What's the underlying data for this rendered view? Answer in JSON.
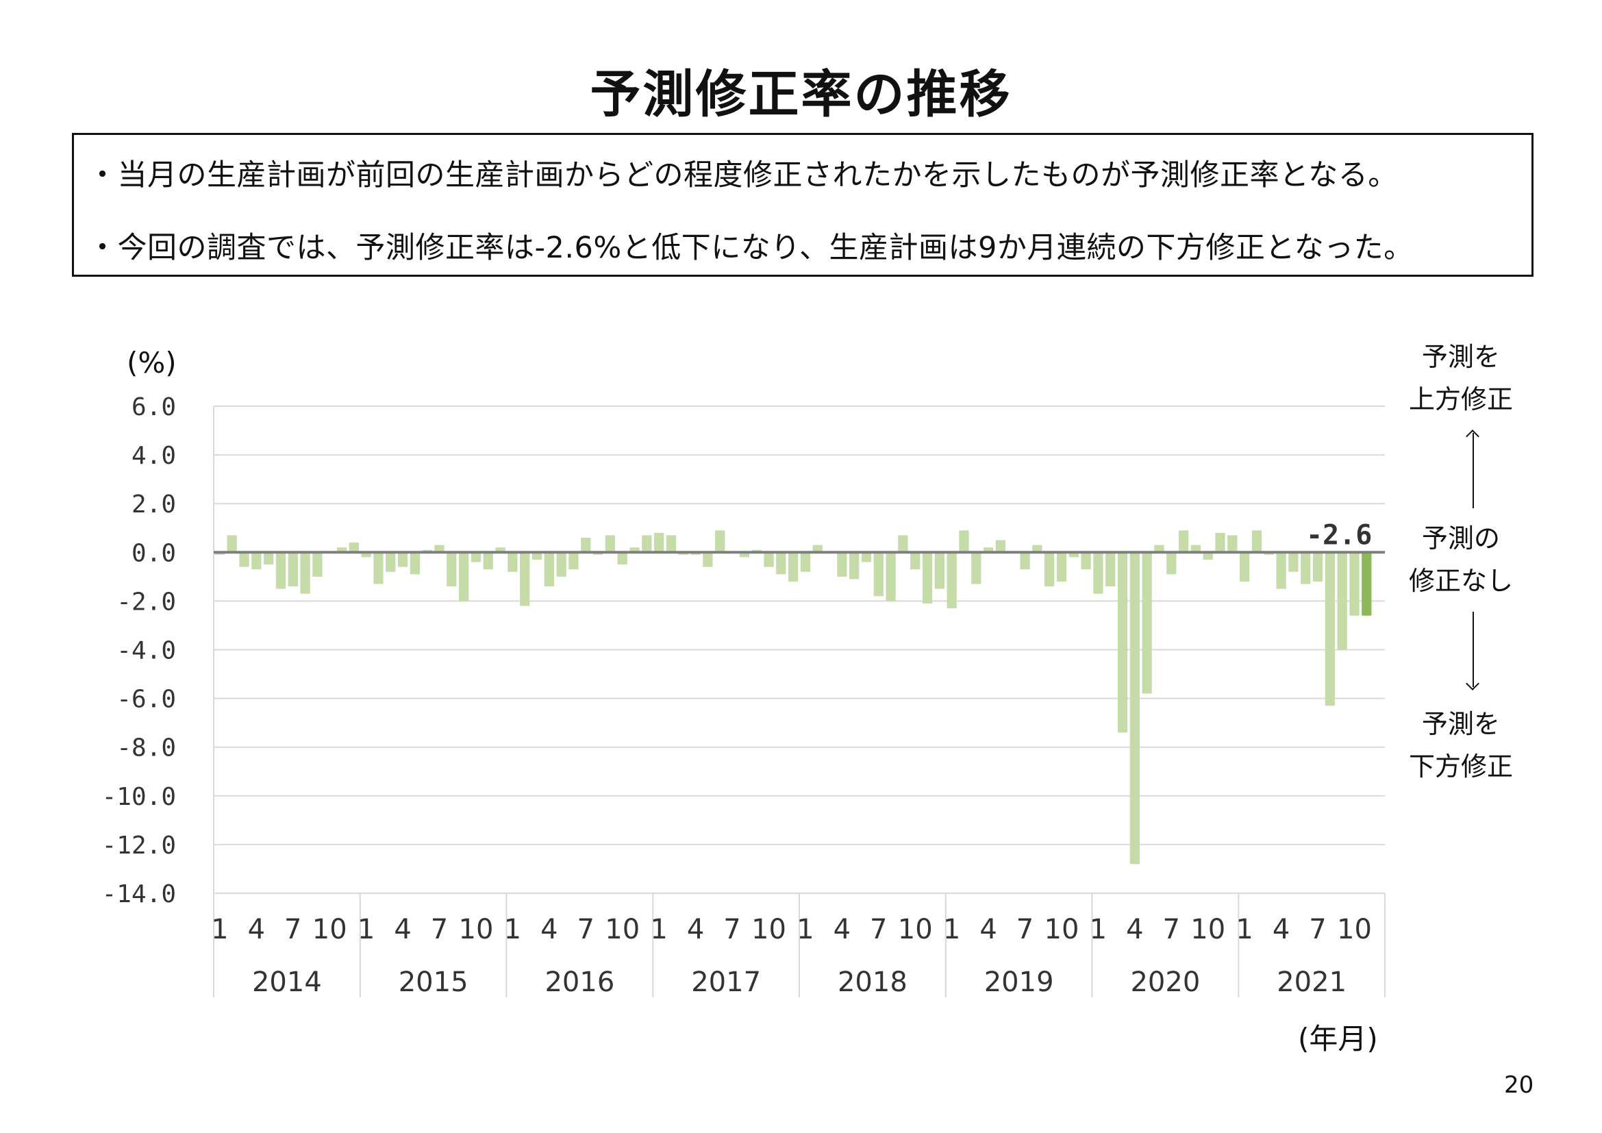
{
  "title": "予測修正率の推移",
  "summary": {
    "line1": "・当月の生産計画が前回の生産計画からどの程度修正されたかを示したものが予測修正率となる。",
    "line2": "・今回の調査では、予測修正率は-2.6%と低下になり、生産計画は9か月連続の下方修正となった。"
  },
  "side_labels": {
    "upward_line1": "予測を",
    "upward_line2": "上方修正",
    "none_line1": "予測の",
    "none_line2": "修正なし",
    "downward_line1": "予測を",
    "downward_line2": "下方修正"
  },
  "page_number": "20",
  "chart_data": {
    "type": "bar",
    "title": "",
    "ylabel": "(%)",
    "xlabel": "(年月)",
    "ylim": [
      -14.0,
      6.0
    ],
    "yticks": [
      "6.0",
      "4.0",
      "2.0",
      "0.0",
      "-2.0",
      "-4.0",
      "-6.0",
      "-8.0",
      "-10.0",
      "-12.0",
      "-14.0"
    ],
    "grid": true,
    "years": [
      "2014",
      "2015",
      "2016",
      "2017",
      "2018",
      "2019",
      "2020",
      "2021"
    ],
    "month_ticks": [
      "1",
      "4",
      "7",
      "10"
    ],
    "latest_label": "-2.6",
    "bar_color": "#c5dba8",
    "highlight_color": "#8cb85a",
    "zero_line_color": "#7f7f7f",
    "values": [
      -0.1,
      0.7,
      -0.6,
      -0.7,
      -0.5,
      -1.5,
      -1.4,
      -1.7,
      -1.0,
      0.0,
      0.2,
      0.4,
      -0.2,
      -1.3,
      -0.8,
      -0.6,
      -0.9,
      0.1,
      0.3,
      -1.4,
      -2.0,
      -0.4,
      -0.7,
      0.2,
      -0.8,
      -2.2,
      -0.3,
      -1.4,
      -1.0,
      -0.7,
      0.6,
      -0.1,
      0.7,
      -0.5,
      0.2,
      0.7,
      0.8,
      0.7,
      -0.1,
      -0.1,
      -0.6,
      0.9,
      0.0,
      -0.2,
      0.1,
      -0.6,
      -0.9,
      -1.2,
      -0.8,
      0.3,
      0.0,
      -1.0,
      -1.1,
      -0.4,
      -1.8,
      -2.0,
      0.7,
      -0.7,
      -2.1,
      -1.5,
      -2.3,
      0.9,
      -1.3,
      0.2,
      0.5,
      0.0,
      -0.7,
      0.3,
      -1.4,
      -1.2,
      -0.2,
      -0.7,
      -1.7,
      -1.4,
      -7.4,
      -12.8,
      -5.8,
      0.3,
      -0.9,
      0.9,
      0.3,
      -0.3,
      0.8,
      0.7,
      -1.2,
      0.9,
      -0.1,
      -1.5,
      -0.8,
      -1.3,
      -1.2,
      -6.3,
      -4.0,
      -2.6,
      -2.6
    ]
  }
}
